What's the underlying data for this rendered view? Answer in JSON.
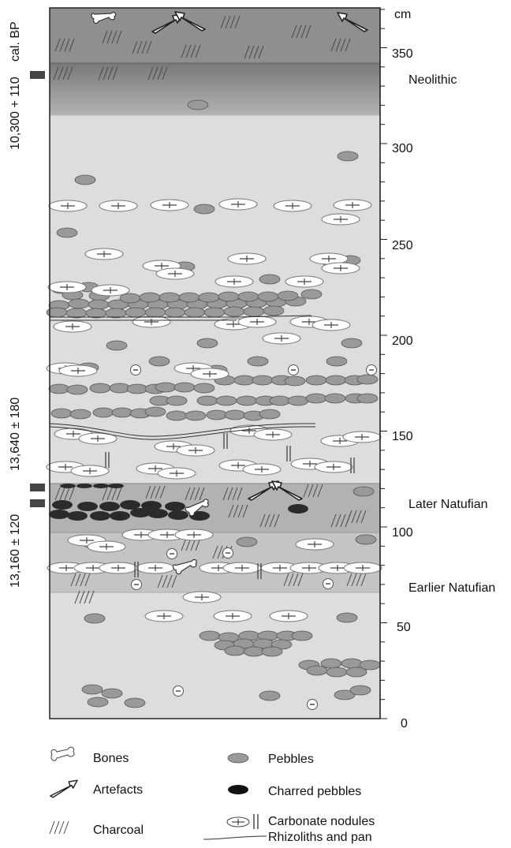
{
  "axis": {
    "unit": "cm",
    "ticks": [
      "350",
      "300",
      "250",
      "200",
      "150",
      "100",
      "50",
      "0"
    ]
  },
  "dates": {
    "header": "cal. BP",
    "items": [
      "10,300 + 110",
      "13,640 ± 180",
      "13,160 ± 120"
    ]
  },
  "layers": [
    "Neolithic",
    "Later Natufian",
    "Earlier Natufian"
  ],
  "legend": [
    {
      "symbol": "bone",
      "label": "Bones"
    },
    {
      "symbol": "pebble",
      "label": "Pebbles"
    },
    {
      "symbol": "artefact",
      "label": "Artefacts"
    },
    {
      "symbol": "charred-pebble",
      "label": "Charred pebbles"
    },
    {
      "symbol": "charcoal",
      "label": "Charcoal"
    },
    {
      "symbol": "carbonate",
      "label": "Carbonate nodules"
    },
    {
      "symbol": "rhizolith-pan",
      "label": "Rhizoliths and pan"
    }
  ],
  "colors": {
    "top_band": "#8c8c8c",
    "neolithic_band": "#a9a9a9",
    "main_fill": "#dddddd",
    "natufian_band": "#b8b8b8",
    "pebble": "#9a9a9a",
    "charred": "#333333"
  }
}
